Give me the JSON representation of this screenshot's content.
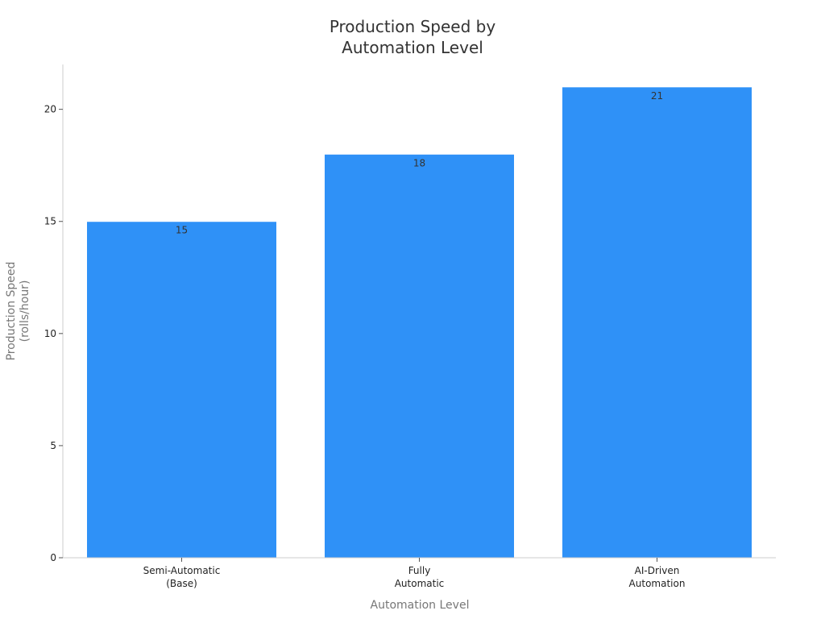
{
  "chart_data": {
    "type": "bar",
    "title_lines": [
      "Production Speed by",
      "Automation Level"
    ],
    "xlabel": "Automation Level",
    "ylabel_lines": [
      "Production Speed",
      "(rolls/hour)"
    ],
    "categories": [
      [
        "Semi-Automatic",
        "(Base)"
      ],
      [
        "Fully",
        "Automatic"
      ],
      [
        "AI-Driven",
        "Automation"
      ]
    ],
    "values": [
      15,
      18,
      21
    ],
    "data_labels": [
      "15",
      "18",
      "21"
    ],
    "ylim": [
      0,
      22
    ],
    "yticks": [
      0,
      5,
      10,
      15,
      20
    ],
    "grid": false,
    "bar_color": "#2f91f7",
    "axis_color": "#cccccc"
  }
}
